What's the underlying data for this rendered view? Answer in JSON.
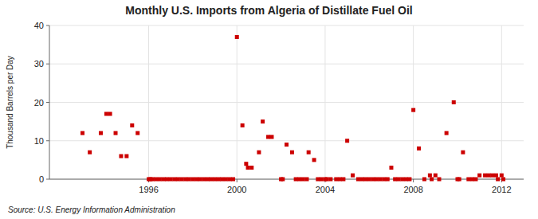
{
  "chart_data": {
    "type": "scatter",
    "title": "Monthly U.S. Imports from Algeria of Distillate Fuel Oil",
    "ylabel": "Thousand Barrels per Day",
    "source": "Source: U.S. Energy Information Administration",
    "color": "#cc0000",
    "marker": "square",
    "grid": true,
    "xlim": [
      1991.5,
      2013.0
    ],
    "ylim": [
      0,
      40
    ],
    "xticks": [
      1996,
      2000,
      2004,
      2008,
      2012
    ],
    "yticks": [
      0,
      10,
      20,
      30,
      40
    ],
    "x": [
      1993.0,
      1993.33,
      1993.83,
      1994.08,
      1994.25,
      1994.5,
      1994.75,
      1995.0,
      1995.25,
      1995.5,
      1996.0,
      1996.08,
      1996.17,
      1996.33,
      1996.5,
      1996.67,
      1996.83,
      1997.0,
      1997.17,
      1997.33,
      1997.5,
      1997.67,
      1997.83,
      1998.0,
      1998.17,
      1998.33,
      1998.5,
      1998.67,
      1998.83,
      1999.0,
      1999.17,
      1999.33,
      1999.5,
      1999.67,
      1999.83,
      2000.0,
      2000.25,
      2000.42,
      2000.5,
      2000.67,
      2001.0,
      2001.17,
      2001.42,
      2001.58,
      2002.0,
      2002.08,
      2002.25,
      2002.5,
      2002.67,
      2002.83,
      2003.0,
      2003.17,
      2003.25,
      2003.5,
      2003.67,
      2003.83,
      2004.0,
      2004.08,
      2004.25,
      2004.5,
      2004.67,
      2004.83,
      2005.0,
      2005.25,
      2005.5,
      2005.67,
      2005.83,
      2006.0,
      2006.17,
      2006.33,
      2006.5,
      2006.67,
      2006.83,
      2007.0,
      2007.17,
      2007.33,
      2007.5,
      2007.67,
      2007.83,
      2008.0,
      2008.25,
      2008.5,
      2008.75,
      2008.83,
      2009.0,
      2009.17,
      2009.5,
      2009.83,
      2010.0,
      2010.08,
      2010.25,
      2010.5,
      2010.67,
      2010.83,
      2011.0,
      2011.25,
      2011.42,
      2011.58,
      2011.75,
      2011.83,
      2012.0,
      2012.08
    ],
    "values": [
      12,
      7,
      12,
      17,
      17,
      12,
      6,
      6,
      14,
      12,
      0,
      0,
      0,
      0,
      0,
      0,
      0,
      0,
      0,
      0,
      0,
      0,
      0,
      0,
      0,
      0,
      0,
      0,
      0,
      0,
      0,
      0,
      0,
      0,
      0,
      37,
      14,
      4,
      3,
      3,
      7,
      15,
      11,
      11,
      0,
      0,
      9,
      7,
      0,
      0,
      0,
      0,
      7,
      5,
      0,
      0,
      0,
      0,
      0,
      0,
      0,
      0,
      10,
      1,
      0,
      0,
      0,
      0,
      0,
      0,
      0,
      0,
      0,
      3,
      0,
      0,
      0,
      0,
      0,
      18,
      8,
      0,
      1,
      0,
      1,
      0,
      12,
      20,
      0,
      0,
      7,
      0,
      0,
      0,
      1,
      1,
      1,
      1,
      1,
      0,
      1,
      0
    ]
  }
}
